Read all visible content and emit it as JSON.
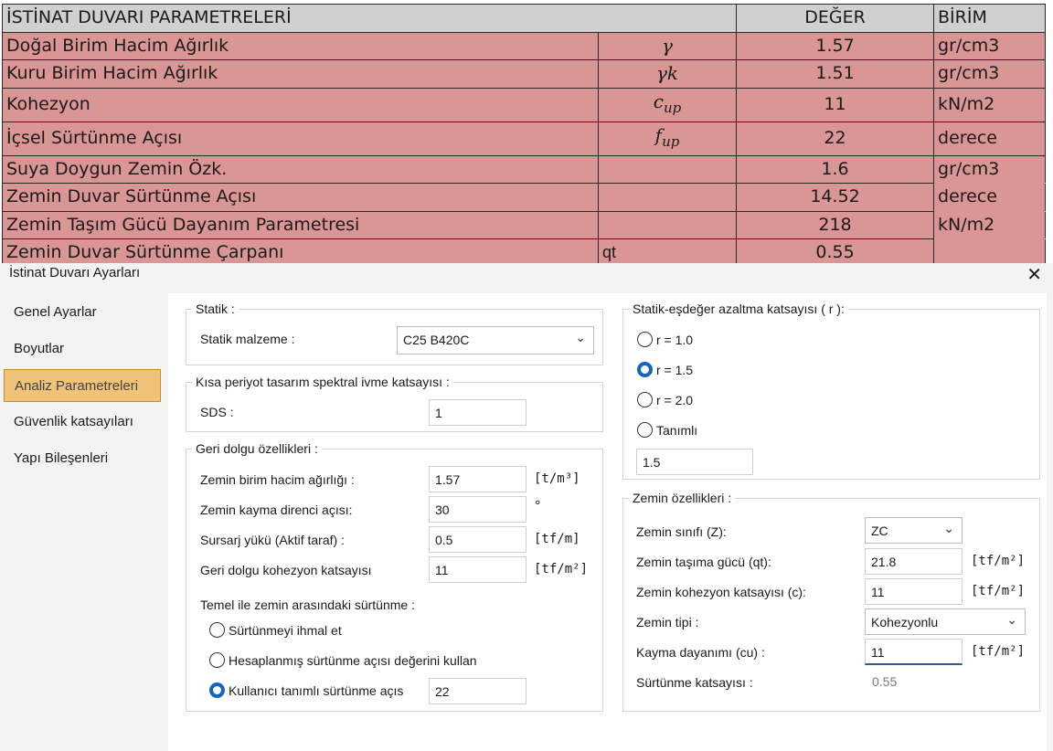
{
  "sheet": {
    "header": {
      "title": "İSTİNAT DUVARI PARAMETRELERİ",
      "value": "DEĞER",
      "unit": "BİRİM"
    },
    "rows": [
      {
        "name": "Doğal Birim Hacim Ağırlık",
        "symbol": "γ",
        "value": "1.57",
        "unit": "gr/cm3"
      },
      {
        "name": "Kuru Birim Hacim Ağırlık",
        "symbol": "γk",
        "value": "1.51",
        "unit": "gr/cm3"
      },
      {
        "name": "Kohezyon",
        "symbol": "c_up",
        "value": "11",
        "unit": "kN/m2"
      },
      {
        "name": "İçsel Sürtünme Açısı",
        "symbol": "f_up",
        "value": "22",
        "unit": "derece"
      },
      {
        "name": "Suya Doygun Zemin Özk.",
        "symbol": "",
        "value": "1.6",
        "unit": "gr/cm3"
      },
      {
        "name": "Zemin Duvar Sürtünme Açısı",
        "symbol": "",
        "value": "14.52",
        "unit": "derece"
      },
      {
        "name": "Zemin Taşım Gücü Dayanım Parametresi",
        "symbol": "",
        "value": "218",
        "unit": "kN/m2"
      },
      {
        "name": "Zemin Duvar Sürtünme Çarpanı",
        "symbol": "qt",
        "value": "0.55",
        "unit": ""
      }
    ],
    "colors": {
      "row_fill": "#da9694",
      "header_fill": "#d0d0d0"
    }
  },
  "dialog": {
    "title": "İstinat Duvarı Ayarları",
    "close": "✕",
    "nav": [
      "Genel Ayarlar",
      "Boyutlar",
      "Analiz Parametreleri",
      "Güvenlik katsayıları",
      "Yapı Bileşenleri"
    ],
    "active_nav": "Analiz Parametreleri",
    "statik": {
      "legend": "Statik :",
      "material_label": "Statik malzeme :",
      "material_value": "C25 B420C"
    },
    "spectral": {
      "legend": "Kısa periyot tasarım spektral ivme katsayısı :",
      "sds_label": "SDS :",
      "sds_value": "1"
    },
    "backfill": {
      "legend": "Geri dolgu özellikleri :",
      "unit_weight_label": "Zemin birim hacim ağırlığı :",
      "unit_weight_value": "1.57",
      "unit_weight_unit": "[t/m³]",
      "shear_angle_label": "Zemin kayma direnci açısı:",
      "shear_angle_value": "30",
      "shear_angle_unit": "°",
      "surcharge_label": "Sursarj yükü (Aktif taraf) :",
      "surcharge_value": "0.5",
      "surcharge_unit": "[tf/m]",
      "cohesion_label": "Geri dolgu kohezyon katsayısı",
      "cohesion_value": "11",
      "cohesion_unit": "[tf/m²]",
      "friction_heading": "Temel ile zemin arasındaki sürtünme :",
      "friction_options": [
        "Sürtünmeyi ihmal et",
        "Hesaplanmış sürtünme açısı değerini kullan",
        "Kullanıcı tanımlı sürtünme açıs"
      ],
      "friction_selected": 2,
      "friction_value": "22"
    },
    "reduction": {
      "legend": "Statik-eşdeğer azaltma katsayısı ( r ):",
      "options": [
        "r = 1.0",
        "r = 1.5",
        "r = 2.0",
        "Tanımlı"
      ],
      "selected": 1,
      "custom_value": "1.5"
    },
    "soil": {
      "legend": "Zemin özellikleri :",
      "class_label": "Zemin sınıfı (Z):",
      "class_value": "ZC",
      "bearing_label": "Zemin taşıma gücü (qt):",
      "bearing_value": "21.8",
      "bearing_unit": "[tf/m²]",
      "cohesion_label": "Zemin kohezyon katsayısı (c):",
      "cohesion_value": "11",
      "cohesion_unit": "[tf/m²]",
      "type_label": "Zemin tipi :",
      "type_value": "Kohezyonlu",
      "shear_label": "Kayma dayanımı (cu) :",
      "shear_value": "11",
      "shear_unit": "[tf/m²]",
      "friction_coef_label": "Sürtünme katsayısı :",
      "friction_coef_value": "0.55"
    },
    "colors": {
      "accent": "#1565c0",
      "nav_active": "#f0c27a"
    }
  }
}
